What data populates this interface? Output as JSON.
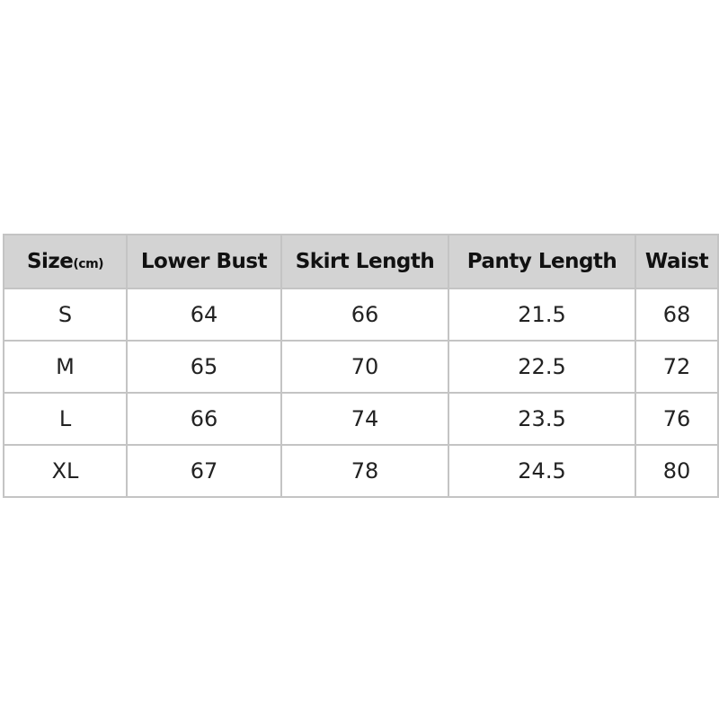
{
  "table": {
    "headers": [
      "Size",
      "Lower Bust",
      "Skirt Length",
      "Panty Length",
      "Waist"
    ],
    "size_unit": "(cm)",
    "rows": [
      [
        "S",
        "64",
        "66",
        "21.5",
        "68"
      ],
      [
        "M",
        "65",
        "70",
        "22.5",
        "72"
      ],
      [
        "L",
        "66",
        "74",
        "23.5",
        "76"
      ],
      [
        "XL",
        "67",
        "78",
        "24.5",
        "80"
      ]
    ],
    "colors": {
      "header_bg": "#d3d3d3",
      "outer_border": "#2a2a2a",
      "inner_border": "#c4c4c4"
    }
  }
}
